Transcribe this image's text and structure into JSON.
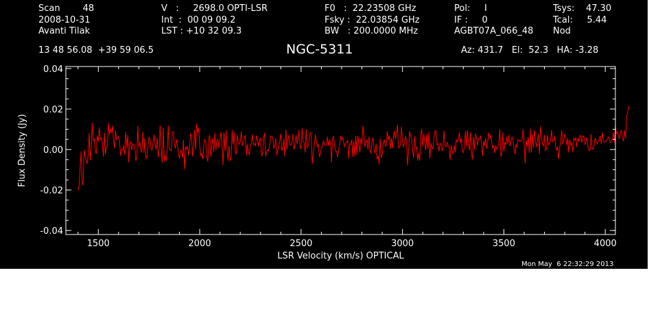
{
  "header": {
    "col1": [
      "Scan        48",
      "2008-10-31",
      "Avanti Tilak"
    ],
    "col2": [
      "V   :     2698.0 OPTI-LSR",
      "Int  :  00 09 09.2",
      "LST : +10 32 09.3"
    ],
    "col3": [
      "F0   :  22.23508 GHz",
      "Fsky :  22.03854 GHz",
      "BW   : 200.0000 MHz"
    ],
    "col4": [
      "Pol:     I",
      "IF :     0",
      "AGBT07A_066_48"
    ],
    "col5": [
      "Tsys:    47.30",
      "Tcal:     5.44",
      "Nod"
    ],
    "coords": "13 48 56.08  +39 59 06.5",
    "source": "NGC-5311",
    "azel": "Az: 431.7   El:  52.3   HA: -3.28",
    "timestamp": "Mon May  6 22:32:29 2013"
  },
  "colors": {
    "background": "#000000",
    "foreground": "#ffffff",
    "series": "#ff0000"
  },
  "chart_data": {
    "type": "line",
    "title": "NGC-5311",
    "xlabel": "LSR Velocity (km/s) OPTICAL",
    "ylabel": "Flux Density (Jy)",
    "xlim": [
      1340,
      4050
    ],
    "ylim": [
      -0.042,
      0.041
    ],
    "xticks": [
      1500,
      2000,
      2500,
      3000,
      3500,
      4000
    ],
    "xtick_labels": [
      "1500",
      "2000",
      "2500",
      "3000",
      "3500",
      "4000"
    ],
    "yticks": [
      -0.04,
      -0.02,
      0.0,
      0.02,
      0.04
    ],
    "ytick_labels": [
      "-0.04",
      "-0.02",
      "0.00",
      "0.02",
      "0.04"
    ],
    "series": [
      {
        "x_start": 1400,
        "x_end": 4005,
        "step": 5,
        "values": [
          -0.0202,
          -0.0184,
          -0.0093,
          -0.0009,
          -0.0161,
          -0.0177,
          -0.0002,
          -0.0035,
          -0.0051,
          -0.0071,
          -0.0029,
          0.0081,
          -0.0052,
          0.0003,
          0.0133,
          0.0044,
          0.0053,
          -0.0009,
          -0.0022,
          0.0069,
          0.0038,
          0.0109,
          0.0051,
          0.0056,
          0.0034,
          -0.0035,
          0.0082,
          -0.0024,
          0.0016,
          0.0016,
          0.0131,
          0.0074,
          0.0104,
          0.0079,
          0.0118,
          0.0041,
          0.0007,
          0.0093,
          0.0049,
          0.0058,
          0.0064,
          0.0036,
          -0.0031,
          -0.0001,
          -0.0004,
          0.0019,
          -0.0026,
          0.0087,
          0.0009,
          0.0071,
          -0.0064,
          0.0034,
          0.0038,
          -0.0003,
          0.0028,
          0.0021,
          0.002,
          -0.0056,
          -0.0038,
          0.0116,
          0.0012,
          0.0035,
          -0.0011,
          -0.0012,
          0.0088,
          -0.0017,
          0.0056,
          -0.0046,
          -0.0037,
          0.0016,
          0.0063,
          0.0047,
          0.0003,
          -0.0004,
          0.0036,
          0.0074,
          0.0022,
          -0.0001,
          0.0059,
          -0.0039,
          -0.0004,
          0.0119,
          0.0008,
          -0.0066,
          0.0107,
          -0.0057,
          -0.0029,
          -0.0056,
          -0.0006,
          0.0119,
          0.0007,
          -0.0004,
          -0.0004,
          0.0086,
          0.0088,
          0.0028,
          0.0004,
          0.0051,
          0.0024,
          -0.0015,
          -0.0045,
          -0.0007,
          -0.0004,
          -0.0042,
          0.0048,
          -0.0099,
          0.0012,
          0.0002,
          0.0017,
          -0.0029,
          0.0016,
          0.0079,
          0.006,
          -0.0034,
          0.0019,
          0.0097,
          0.0,
          0.0127,
          0.0083,
          0.0108,
          0.0019,
          -0.0033,
          -0.0017,
          -0.0048,
          0.0019,
          0.0049,
          0.0038,
          -0.0037,
          -0.006,
          0.0059,
          0.0068,
          -0.0035,
          0.0029,
          0.0053,
          -0.0012,
          0.0082,
          -0.0002,
          0.0044,
          0.0051,
          0.0006,
          0.0054,
          0.0087,
          0.0017,
          -0.0077,
          0.0084,
          -0.0008,
          0.0094,
          -0.0002,
          -0.0054,
          0.0018,
          -0.0054,
          -0.0046,
          0.0097,
          0.0026,
          0.0084,
          -0.0013,
          -0.0024,
          0.0072,
          0.0041,
          0.0024,
          0.0037,
          0.0089,
          0.0018,
          0.0035,
          0.0057,
          0.0071,
          -0.003,
          0.0026,
          -0.0018,
          -0.0024,
          0.0026,
          0.0029,
          0.0075,
          0.0024,
          0.0029,
          0.0017,
          0.0069,
          0.0051,
          0.0016,
          0.0044,
          0.0058,
          -0.0031,
          -0.0023,
          0.0059,
          0.0082,
          -0.0035,
          -0.0011,
          -0.0002,
          -0.0007,
          0.0021,
          0.0066,
          0.0064,
          0.0058,
          0.0006,
          0.0015,
          0.0056,
          -0.0029,
          -0.0005,
          0.0016,
          0.0042,
          0.0078,
          -0.0006,
          0.0009,
          0.0053,
          -0.0034,
          0.0099,
          0.0,
          0.0049,
          0.0071,
          0.0021,
          0.0023,
          0.0037,
          0.0077,
          -0.0001,
          0.0024,
          0.0071,
          0.0027,
          0.0051,
          0.0096,
          0.0011,
          0.0004,
          0.0106,
          0.0039,
          0.0033,
          -0.0015,
          0.0101,
          0.0009,
          0.0017,
          0.0047,
          0.0086,
          0.0073,
          -0.0071,
          -0.0018,
          0.0022,
          0.0074,
          0.0048,
          0.0014,
          0.0025,
          -0.0034,
          -0.0026,
          0.0011,
          0.0011,
          0.0044,
          0.0024,
          0.002,
          0.0021,
          0.0063,
          0.0018,
          0.0046,
          0.0039,
          -0.0063,
          0.0054,
          0.0068,
          0.0018,
          -0.0008,
          -0.001,
          -0.0037,
          -0.0003,
          0.0025,
          0.0068,
          0.0047,
          0.006,
          0.0035,
          0.0015,
          0.0034,
          0.0036,
          0.0047,
          -0.0045,
          0.0024,
          0.0024,
          0.005,
          -0.0037,
          0.0039,
          -0.0034,
          0.0068,
          -0.0026,
          0.0068,
          0.0026,
          -0.0014,
          0.0057,
          0.0025,
          0.0117,
          0.0061,
          0.0012,
          0.0037,
          0.0046,
          0.0,
          0.0064,
          -0.0008,
          -0.0018,
          0.0039,
          0.0059,
          -0.0005,
          -0.0018,
          0.0029,
          -0.0049,
          -0.0031,
          -0.0074,
          0.0054,
          -0.004,
          -0.0028,
          0.0031,
          0.0049,
          0.0017,
          0.002,
          0.0091,
          0.0048,
          0.0069,
          0.0002,
          0.0055,
          0.0007,
          0.0058,
          0.0092,
          0.005,
          0.0078,
          0.0122,
          0.0008,
          0.001,
          0.0027,
          0.0113,
          0.0043,
          0.0012,
          0.0033,
          0.0065,
          0.0044,
          -0.0079,
          -0.0015,
          0.0091,
          0.0066,
          0.0056,
          -0.0004,
          -0.0041,
          0.0066,
          0.0006,
          0.0012,
          -0.0055,
          -0.0015,
          -0.0054,
          0.0069,
          0.0102,
          0.0018,
          0.0077,
          0.0033,
          -0.0004,
          0.0074,
          0.0003,
          0.0087,
          -0.0045,
          0.0032,
          0.0011,
          0.0003,
          0.0056,
          0.0091,
          0.0093,
          0.0023,
          0.0029,
          -0.0009,
          0.0027,
          0.003,
          -0.0008,
          0.0013,
          0.0093,
          0.002,
          0.0014,
          0.0037,
          0.0018,
          0.0012,
          -0.0052,
          0.0022,
          -0.0009,
          -0.0023,
          0.0022,
          -0.0015,
          0.0051,
          0.0037,
          0.0045,
          0.0084,
          0.0032,
          0.0056,
          -0.0011,
          -0.0015,
          0.0013,
          0.0091,
          0.0015,
          0.0097,
          0.0031,
          -0.0005,
          0.0085,
          -0.0013,
          -0.0049,
          0.0061,
          -0.0001,
          0.0077,
          0.0055,
          0.0021,
          0.0053,
          0.0051,
          0.0069,
          0.0029,
          -0.0032,
          0.0043,
          0.0018,
          0.0057,
          0.0003,
          0.0037,
          0.0083,
          0.005,
          0.0074,
          0.0036,
          0.0006,
          0.0022,
          -0.0018,
          0.0019,
          0.0002,
          0.0013,
          0.003,
          0.0101,
          -0.0035,
          -0.0021,
          0.0085,
          -0.0009,
          0.0037,
          0.0024,
          0.0064,
          0.0029,
          0.0073,
          0.0016,
          0.0043,
          0.0061,
          0.0046,
          0.0005,
          -0.0023,
          0.0027,
          0.0009,
          0.0048,
          0.0045,
          0.0039,
          0.0045,
          0.0047,
          0.0101,
          0.0025,
          -0.0069,
          0.0047,
          0.0015,
          0.0062,
          -0.0016,
          0.0103,
          -0.0016,
          0.0075,
          0.0009,
          0.0095,
          0.0055,
          0.0011,
          0.0039,
          0.0076,
          -0.0023,
          0.0114,
          0.0068,
          0.0028,
          0.0016,
          0.0072,
          -0.0005,
          0.0002,
          0.0071,
          0.0024,
          0.0028,
          0.0046,
          0.0095,
          0.0038,
          0.0043,
          0.0066,
          0.0021,
          -0.0005,
          0.0015,
          -0.0047,
          0.0004,
          0.0045,
          0.0096,
          0.0026,
          0.0045,
          0.0077,
          0.0055,
          0.0021,
          0.0056,
          -0.0015,
          0.0049,
          0.0022,
          0.0032,
          -0.0013,
          0.0058,
          0.0046,
          0.0057,
          0.0011,
          0.0058,
          0.0039,
          0.0071,
          0.0061,
          0.0034,
          0.0068,
          0.0061,
          0.0025,
          0.0035,
          0.0061,
          0.0013,
          -0.0004,
          -0.0005,
          0.0077,
          0.0004,
          0.0001,
          0.0022,
          0.0057,
          0.0041,
          0.0029,
          0.0041,
          0.0053,
          0.0068,
          0.0028,
          0.0083,
          0.0048,
          0.0036,
          0.0038,
          0.0041,
          0.0053,
          0.0063,
          0.0051,
          0.0034,
          0.0037,
          0.0054,
          0.0083,
          0.0035,
          0.0121,
          0.0078,
          0.0085,
          0.0073,
          0.0052,
          0.0087,
          0.0094,
          0.0055,
          0.0041,
          0.0095,
          0.0056,
          0.0163,
          0.0178,
          0.0216
        ]
      }
    ]
  }
}
